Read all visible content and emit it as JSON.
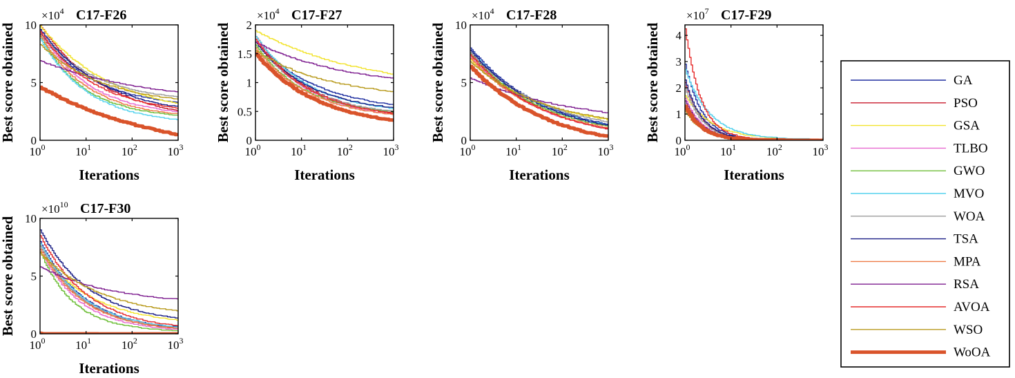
{
  "legend": {
    "entries": [
      {
        "name": "GA",
        "color": "#1f2fa0",
        "width": 1.4
      },
      {
        "name": "PSO",
        "color": "#c8192b",
        "width": 1.4
      },
      {
        "name": "GSA",
        "color": "#f2e32c",
        "width": 1.4
      },
      {
        "name": "TLBO",
        "color": "#e86ad0",
        "width": 1.4
      },
      {
        "name": "GWO",
        "color": "#6cbd36",
        "width": 1.4
      },
      {
        "name": "MVO",
        "color": "#55d2ee",
        "width": 1.4
      },
      {
        "name": "WOA",
        "color": "#9a9a9a",
        "width": 1.4
      },
      {
        "name": "TSA",
        "color": "#1b1f86",
        "width": 1.4
      },
      {
        "name": "MPA",
        "color": "#ee7a45",
        "width": 1.4
      },
      {
        "name": "RSA",
        "color": "#7d1d8f",
        "width": 1.4
      },
      {
        "name": "AVOA",
        "color": "#e62b2b",
        "width": 1.4
      },
      {
        "name": "WSO",
        "color": "#b89a1c",
        "width": 1.4
      },
      {
        "name": "WoOA",
        "color": "#d9532a",
        "width": 5
      }
    ]
  },
  "chart_data": [
    {
      "type": "line",
      "title": "C17-F26",
      "xlabel": "Iterations",
      "ylabel": "Best score obtained",
      "xscale": "log",
      "xlim": [
        1,
        1000
      ],
      "ylim": [
        0,
        10
      ],
      "multiplier_base": "×10",
      "multiplier_exp": "4",
      "yticks": [
        "0",
        "5",
        "10"
      ],
      "xtick_base": "10",
      "xtick_exps": [
        "0",
        "1",
        "2",
        "3"
      ],
      "series": [
        {
          "name": "GA",
          "start": 9.2,
          "end": 3.3,
          "k": 0.8
        },
        {
          "name": "PSO",
          "start": 10.0,
          "end": 2.6,
          "k": 0.7
        },
        {
          "name": "GSA",
          "start": 9.9,
          "end": 3.2,
          "k": 0.6
        },
        {
          "name": "TLBO",
          "start": 9.5,
          "end": 2.5,
          "k": 0.9
        },
        {
          "name": "GWO",
          "start": 9.0,
          "end": 2.2,
          "k": 1.0
        },
        {
          "name": "MVO",
          "start": 8.8,
          "end": 1.8,
          "k": 0.9
        },
        {
          "name": "WOA",
          "start": 9.3,
          "end": 3.8,
          "k": 0.8
        },
        {
          "name": "TSA",
          "start": 9.6,
          "end": 2.9,
          "k": 0.7
        },
        {
          "name": "MPA",
          "start": 9.1,
          "end": 2.3,
          "k": 0.9
        },
        {
          "name": "RSA",
          "start": 6.9,
          "end": 4.2,
          "k": 0.4
        },
        {
          "name": "AVOA",
          "start": 9.4,
          "end": 2.8,
          "k": 0.8
        },
        {
          "name": "WSO",
          "start": 8.3,
          "end": 3.6,
          "k": 0.7
        },
        {
          "name": "WoOA",
          "start": 4.6,
          "end": 0.5,
          "k": 0.35
        }
      ]
    },
    {
      "type": "line",
      "title": "C17-F27",
      "xlabel": "Iterations",
      "ylabel": "Best score obtained",
      "xscale": "log",
      "xlim": [
        1,
        1000
      ],
      "ylim": [
        0,
        2
      ],
      "multiplier_base": "×10",
      "multiplier_exp": "4",
      "yticks": [
        "0",
        "0.5",
        "1",
        "1.5",
        "2"
      ],
      "xtick_base": "10",
      "xtick_exps": [
        "0",
        "1",
        "2",
        "3"
      ],
      "series": [
        {
          "name": "GA",
          "start": 1.7,
          "end": 0.62,
          "k": 0.7
        },
        {
          "name": "PSO",
          "start": 1.8,
          "end": 0.48,
          "k": 0.8
        },
        {
          "name": "GSA",
          "start": 1.9,
          "end": 1.15,
          "k": 0.4
        },
        {
          "name": "TLBO",
          "start": 1.75,
          "end": 0.45,
          "k": 0.8
        },
        {
          "name": "GWO",
          "start": 1.65,
          "end": 0.5,
          "k": 0.9
        },
        {
          "name": "MVO",
          "start": 1.8,
          "end": 0.55,
          "k": 0.8
        },
        {
          "name": "WOA",
          "start": 1.7,
          "end": 0.5,
          "k": 0.8
        },
        {
          "name": "TSA",
          "start": 1.7,
          "end": 0.57,
          "k": 0.8
        },
        {
          "name": "MPA",
          "start": 1.6,
          "end": 0.45,
          "k": 0.8
        },
        {
          "name": "RSA",
          "start": 1.7,
          "end": 1.08,
          "k": 0.5
        },
        {
          "name": "AVOA",
          "start": 1.75,
          "end": 0.47,
          "k": 0.8
        },
        {
          "name": "WSO",
          "start": 1.55,
          "end": 0.85,
          "k": 0.6
        },
        {
          "name": "WoOA",
          "start": 1.5,
          "end": 0.35,
          "k": 0.7
        }
      ]
    },
    {
      "type": "line",
      "title": "C17-F28",
      "xlabel": "Iterations",
      "ylabel": "Best score obtained",
      "xscale": "log",
      "xlim": [
        1,
        1000
      ],
      "ylim": [
        0,
        10
      ],
      "multiplier_base": "×10",
      "multiplier_exp": "4",
      "yticks": [
        "0",
        "5",
        "10"
      ],
      "xtick_base": "10",
      "xtick_exps": [
        "0",
        "1",
        "2",
        "3"
      ],
      "series": [
        {
          "name": "GA",
          "start": 8.0,
          "end": 1.4,
          "k": 0.6
        },
        {
          "name": "PSO",
          "start": 7.6,
          "end": 1.0,
          "k": 0.6
        },
        {
          "name": "GSA",
          "start": 7.0,
          "end": 1.8,
          "k": 0.6
        },
        {
          "name": "TLBO",
          "start": 7.3,
          "end": 1.0,
          "k": 0.6
        },
        {
          "name": "GWO",
          "start": 7.5,
          "end": 1.2,
          "k": 0.6
        },
        {
          "name": "MVO",
          "start": 7.8,
          "end": 1.3,
          "k": 0.6
        },
        {
          "name": "WOA",
          "start": 7.6,
          "end": 1.6,
          "k": 0.6
        },
        {
          "name": "TSA",
          "start": 7.8,
          "end": 1.3,
          "k": 0.6
        },
        {
          "name": "MPA",
          "start": 7.1,
          "end": 1.1,
          "k": 0.6
        },
        {
          "name": "RSA",
          "start": 5.4,
          "end": 2.4,
          "k": 0.4
        },
        {
          "name": "AVOA",
          "start": 7.4,
          "end": 1.0,
          "k": 0.6
        },
        {
          "name": "WSO",
          "start": 6.8,
          "end": 1.9,
          "k": 0.6
        },
        {
          "name": "WoOA",
          "start": 6.4,
          "end": 0.3,
          "k": 0.55
        }
      ]
    },
    {
      "type": "line",
      "title": "C17-F29",
      "xlabel": "Iterations",
      "ylabel": "Best score obtained",
      "xscale": "log",
      "xlim": [
        1,
        1000
      ],
      "ylim": [
        0,
        4.4
      ],
      "multiplier_base": "×10",
      "multiplier_exp": "7",
      "yticks": [
        "0",
        "1",
        "2",
        "3",
        "4"
      ],
      "xtick_base": "10",
      "xtick_exps": [
        "0",
        "1",
        "2",
        "3"
      ],
      "series": [
        {
          "name": "GA",
          "start": 2.9,
          "end": 0.03,
          "k": 2.6
        },
        {
          "name": "PSO",
          "start": 2.2,
          "end": 0.03,
          "k": 2.6
        },
        {
          "name": "GSA",
          "start": 1.7,
          "end": 0.05,
          "k": 1.6
        },
        {
          "name": "TLBO",
          "start": 1.6,
          "end": 0.03,
          "k": 2.6
        },
        {
          "name": "GWO",
          "start": 1.2,
          "end": 0.03,
          "k": 2.6
        },
        {
          "name": "MVO",
          "start": 2.7,
          "end": 0.06,
          "k": 1.8
        },
        {
          "name": "WOA",
          "start": 2.0,
          "end": 0.03,
          "k": 2.6
        },
        {
          "name": "TSA",
          "start": 2.3,
          "end": 0.03,
          "k": 2.6
        },
        {
          "name": "MPA",
          "start": 1.3,
          "end": 0.03,
          "k": 2.6
        },
        {
          "name": "RSA",
          "start": 1.5,
          "end": 0.03,
          "k": 2.6
        },
        {
          "name": "AVOA",
          "start": 4.25,
          "end": 0.03,
          "k": 2.8
        },
        {
          "name": "WSO",
          "start": 1.1,
          "end": 0.03,
          "k": 2.6
        },
        {
          "name": "WoOA",
          "start": 1.3,
          "end": 0.02,
          "k": 2.6
        }
      ]
    },
    {
      "type": "line",
      "title": "C17-F30",
      "xlabel": "Iterations",
      "ylabel": "Best score obtained",
      "xscale": "log",
      "xlim": [
        1,
        1000
      ],
      "ylim": [
        0,
        10
      ],
      "multiplier_base": "×10",
      "multiplier_exp": "10",
      "yticks": [
        "0",
        "5",
        "10"
      ],
      "xtick_base": "10",
      "xtick_exps": [
        "0",
        "1",
        "2",
        "3"
      ],
      "series": [
        {
          "name": "GA",
          "start": 8.0,
          "end": 0.6,
          "k": 1.0
        },
        {
          "name": "PSO",
          "start": 7.6,
          "end": 0.5,
          "k": 1.0
        },
        {
          "name": "GSA",
          "start": 7.0,
          "end": 1.2,
          "k": 0.8
        },
        {
          "name": "TLBO",
          "start": 7.3,
          "end": 0.4,
          "k": 1.1
        },
        {
          "name": "GWO",
          "start": 7.1,
          "end": 0.3,
          "k": 1.3
        },
        {
          "name": "MVO",
          "start": 7.8,
          "end": 0.6,
          "k": 1.0
        },
        {
          "name": "WOA",
          "start": 7.6,
          "end": 0.5,
          "k": 1.0
        },
        {
          "name": "TSA",
          "start": 9.0,
          "end": 1.4,
          "k": 0.9
        },
        {
          "name": "MPA",
          "start": 7.3,
          "end": 0.5,
          "k": 1.0
        },
        {
          "name": "RSA",
          "start": 5.8,
          "end": 3.0,
          "k": 0.6
        },
        {
          "name": "AVOA",
          "start": 8.5,
          "end": 0.7,
          "k": 0.9
        },
        {
          "name": "WSO",
          "start": 7.0,
          "end": 2.0,
          "k": 0.7
        },
        {
          "name": "WoOA",
          "start": 0.05,
          "end": 0.05,
          "k": 1.0
        }
      ]
    }
  ]
}
